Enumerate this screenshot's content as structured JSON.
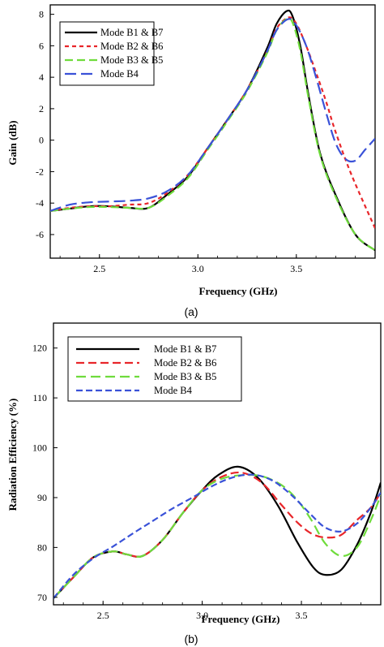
{
  "chart_data": [
    {
      "type": "line",
      "caption": "(a)",
      "xlabel": "Frequency (GHz)",
      "ylabel": "Gain (dB)",
      "xlim": [
        2.25,
        3.9
      ],
      "ylim": [
        -7.5,
        8.6
      ],
      "xticks": [
        2.5,
        3.0,
        3.5
      ],
      "xtick_labels": [
        "2.5",
        "3.0",
        "3.5"
      ],
      "yticks": [
        -6,
        -4,
        -2,
        0,
        2,
        4,
        6,
        8
      ],
      "ytick_labels": [
        "-6",
        "-4",
        "-2",
        "0",
        "2",
        "4",
        "6",
        "8"
      ],
      "grid": false,
      "legend_position": "top-left",
      "series": [
        {
          "name": "Mode B1 & B7",
          "color": "#000000",
          "dash": "solid",
          "x": [
            2.25,
            2.35,
            2.45,
            2.55,
            2.65,
            2.75,
            2.85,
            2.95,
            3.05,
            3.15,
            3.25,
            3.35,
            3.4,
            3.45,
            3.48,
            3.52,
            3.56,
            3.62,
            3.7,
            3.8,
            3.9
          ],
          "y": [
            -4.5,
            -4.35,
            -4.2,
            -4.2,
            -4.3,
            -4.3,
            -3.4,
            -2.3,
            -0.5,
            1.3,
            3.2,
            5.8,
            7.4,
            8.2,
            7.9,
            6.0,
            3.0,
            -0.8,
            -3.5,
            -6.0,
            -7.0
          ]
        },
        {
          "name": "Mode B2 & B6",
          "color": "#e8262a",
          "dash": "5,4",
          "x": [
            2.25,
            2.35,
            2.45,
            2.55,
            2.65,
            2.75,
            2.85,
            2.95,
            3.05,
            3.15,
            3.25,
            3.35,
            3.4,
            3.46,
            3.5,
            3.55,
            3.6,
            3.65,
            3.7,
            3.78,
            3.9
          ],
          "y": [
            -4.5,
            -4.3,
            -4.2,
            -4.2,
            -4.1,
            -4.0,
            -3.3,
            -2.2,
            -0.5,
            1.3,
            3.2,
            5.6,
            7.1,
            7.8,
            7.4,
            6.0,
            4.3,
            2.5,
            0.5,
            -2.2,
            -5.6
          ]
        },
        {
          "name": "Mode B3 & B5",
          "color": "#6fdc3c",
          "dash": "10,5",
          "x": [
            2.25,
            2.35,
            2.45,
            2.55,
            2.65,
            2.75,
            2.85,
            2.95,
            3.05,
            3.15,
            3.25,
            3.35,
            3.4,
            3.45,
            3.48,
            3.52,
            3.56,
            3.62,
            3.7,
            3.8,
            3.9
          ],
          "y": [
            -4.5,
            -4.35,
            -4.25,
            -4.25,
            -4.3,
            -4.3,
            -3.5,
            -2.4,
            -0.6,
            1.2,
            3.1,
            5.5,
            7.0,
            7.7,
            7.5,
            5.7,
            2.8,
            -0.9,
            -3.6,
            -6.0,
            -7.0
          ]
        },
        {
          "name": "Mode B4",
          "color": "#3a52d8",
          "dash": "14,6",
          "x": [
            2.25,
            2.35,
            2.45,
            2.55,
            2.65,
            2.75,
            2.85,
            2.95,
            3.05,
            3.15,
            3.25,
            3.35,
            3.4,
            3.46,
            3.5,
            3.55,
            3.6,
            3.65,
            3.7,
            3.75,
            3.8,
            3.85,
            3.9
          ],
          "y": [
            -4.5,
            -4.1,
            -3.95,
            -3.9,
            -3.85,
            -3.7,
            -3.2,
            -2.2,
            -0.5,
            1.3,
            3.2,
            5.6,
            7.0,
            7.7,
            7.3,
            6.0,
            4.0,
            1.8,
            -0.2,
            -1.2,
            -1.3,
            -0.6,
            0.1
          ]
        }
      ]
    },
    {
      "type": "line",
      "caption": "(b)",
      "xlabel": "Frequency (GHz)",
      "ylabel": "Radiation Efficiency (%)",
      "xlim": [
        2.25,
        3.9
      ],
      "ylim": [
        68.5,
        125
      ],
      "xticks": [
        2.5,
        3.0,
        3.5
      ],
      "xtick_labels": [
        "2.5",
        "3.0",
        "3.5"
      ],
      "yticks": [
        70,
        80,
        90,
        100,
        110,
        120
      ],
      "ytick_labels": [
        "70",
        "80",
        "90",
        "100",
        "110",
        "120"
      ],
      "grid": false,
      "legend_position": "top-left",
      "series": [
        {
          "name": "Mode B1 & B7",
          "color": "#000000",
          "dash": "solid",
          "x": [
            2.25,
            2.35,
            2.45,
            2.55,
            2.62,
            2.7,
            2.8,
            2.9,
            3.0,
            3.08,
            3.18,
            3.28,
            3.38,
            3.48,
            3.56,
            3.62,
            3.7,
            3.78,
            3.85,
            3.9
          ],
          "y": [
            69.8,
            74.0,
            78.0,
            79.2,
            78.6,
            78.3,
            81.5,
            86.8,
            91.5,
            94.5,
            96.2,
            94.0,
            88.5,
            81.0,
            76.0,
            74.5,
            75.5,
            80.5,
            87.0,
            93.0
          ]
        },
        {
          "name": "Mode B2 & B6",
          "color": "#e8262a",
          "dash": "10,5",
          "x": [
            2.25,
            2.35,
            2.45,
            2.55,
            2.62,
            2.7,
            2.8,
            2.9,
            3.0,
            3.1,
            3.2,
            3.3,
            3.4,
            3.48,
            3.55,
            3.62,
            3.7,
            3.78,
            3.85,
            3.9
          ],
          "y": [
            69.8,
            74.0,
            78.0,
            79.2,
            78.6,
            78.3,
            81.5,
            86.8,
            91.5,
            94.2,
            95.0,
            93.0,
            88.5,
            85.0,
            82.8,
            82.0,
            82.5,
            85.5,
            88.0,
            91.0
          ]
        },
        {
          "name": "Mode B3 & B5",
          "color": "#6fdc3c",
          "dash": "12,6",
          "x": [
            2.25,
            2.35,
            2.45,
            2.55,
            2.62,
            2.7,
            2.8,
            2.9,
            3.0,
            3.1,
            3.2,
            3.3,
            3.4,
            3.48,
            3.55,
            3.62,
            3.7,
            3.78,
            3.85,
            3.9
          ],
          "y": [
            69.8,
            74.0,
            78.0,
            79.2,
            78.6,
            78.3,
            81.5,
            86.8,
            91.5,
            93.8,
            94.5,
            94.3,
            92.5,
            89.5,
            85.5,
            80.8,
            78.3,
            80.0,
            85.5,
            90.5
          ]
        },
        {
          "name": "Mode B4",
          "color": "#3a52d8",
          "dash": "8,4",
          "x": [
            2.25,
            2.35,
            2.45,
            2.55,
            2.65,
            2.75,
            2.85,
            2.95,
            3.05,
            3.15,
            3.25,
            3.35,
            3.45,
            3.55,
            3.62,
            3.7,
            3.78,
            3.85,
            3.9
          ],
          "y": [
            69.8,
            74.5,
            77.8,
            80.2,
            82.8,
            85.3,
            87.8,
            90.0,
            92.3,
            94.0,
            94.6,
            93.5,
            90.5,
            86.5,
            84.0,
            83.2,
            84.8,
            88.0,
            91.0
          ]
        }
      ]
    }
  ]
}
